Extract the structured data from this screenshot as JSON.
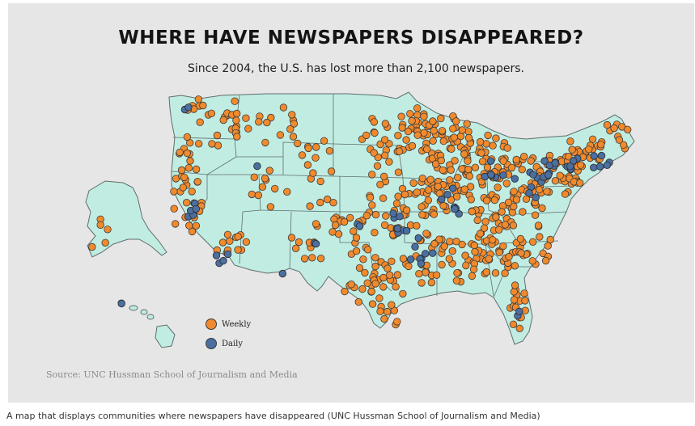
{
  "title": "WHERE HAVE NEWSPAPERS DISAPPEARED?",
  "subtitle": "Since 2004, the U.S. has lost more than 2,100 newspapers.",
  "legend": [
    {
      "label": "Weekly",
      "color": "#f08a2c"
    },
    {
      "label": "Daily",
      "color": "#4a6fa0"
    }
  ],
  "source": "Source: UNC Hussman School of Journalism and Media",
  "caption": "A map that displays communities where newspapers have disappeared (UNC Hussman School of Journalism and Media)",
  "colors": {
    "land": "#c0ece2",
    "border": "#5f6e6b",
    "weekly": "#f08a2c",
    "daily": "#4a6fa0",
    "background": "#e6e6e6"
  }
}
